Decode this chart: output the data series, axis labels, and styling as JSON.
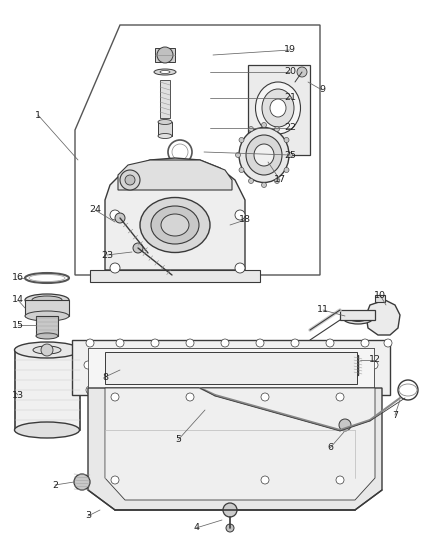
{
  "background_color": "#ffffff",
  "line_color": "#3a3a3a",
  "fig_width": 4.38,
  "fig_height": 5.33,
  "dpi": 100
}
